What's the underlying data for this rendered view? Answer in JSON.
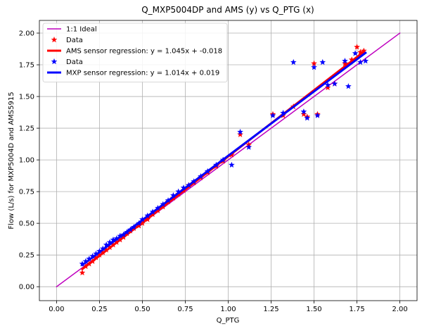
{
  "chart_data": {
    "type": "scatter",
    "title": "Q_MXP5004DP and AMS (y) vs Q_PTG (x)",
    "xlabel": "Q_PTG",
    "ylabel": "Flow (L/s) for MXP5004D and AMS5915",
    "xlim": [
      -0.1,
      2.1
    ],
    "ylim": [
      -0.11,
      2.1
    ],
    "xticks": [
      0.0,
      0.25,
      0.5,
      0.75,
      1.0,
      1.25,
      1.5,
      1.75,
      2.0
    ],
    "xtick_labels": [
      "0.00",
      "0.25",
      "0.50",
      "0.75",
      "1.00",
      "1.25",
      "1.50",
      "1.75",
      "2.00"
    ],
    "yticks": [
      0.0,
      0.25,
      0.5,
      0.75,
      1.0,
      1.25,
      1.5,
      1.75,
      2.0
    ],
    "ytick_labels": [
      "0.00",
      "0.25",
      "0.50",
      "0.75",
      "1.00",
      "1.25",
      "1.50",
      "1.75",
      "2.00"
    ],
    "grid": true,
    "legend_position": "top-left",
    "series": [
      {
        "name": "1:1 Ideal",
        "kind": "line",
        "color": "#bf00bf",
        "x": [
          0.0,
          2.0
        ],
        "y": [
          0.0,
          2.0
        ]
      },
      {
        "name": "Data",
        "kind": "points",
        "color": "#ff0000",
        "x": [
          0.15,
          0.17,
          0.19,
          0.21,
          0.23,
          0.25,
          0.27,
          0.29,
          0.31,
          0.33,
          0.35,
          0.37,
          0.39,
          0.41,
          0.43,
          0.45,
          0.48,
          0.5,
          0.53,
          0.56,
          0.59,
          0.62,
          0.65,
          0.68,
          0.71,
          0.74,
          0.77,
          0.8,
          0.84,
          0.88,
          0.93,
          0.97,
          1.02,
          1.07,
          1.12,
          1.26,
          1.32,
          1.38,
          1.44,
          1.46,
          1.5,
          1.52,
          1.58,
          1.62,
          1.68,
          1.72,
          1.75,
          1.77,
          1.79
        ],
        "y": [
          0.11,
          0.16,
          0.18,
          0.2,
          0.23,
          0.25,
          0.27,
          0.29,
          0.31,
          0.33,
          0.35,
          0.37,
          0.39,
          0.42,
          0.44,
          0.46,
          0.48,
          0.5,
          0.53,
          0.57,
          0.6,
          0.63,
          0.67,
          0.7,
          0.73,
          0.76,
          0.8,
          0.82,
          0.86,
          0.9,
          0.95,
          0.99,
          1.04,
          1.2,
          1.12,
          1.36,
          1.35,
          1.42,
          1.36,
          1.34,
          1.76,
          1.36,
          1.57,
          1.6,
          1.76,
          1.79,
          1.89,
          1.85,
          1.86
        ]
      },
      {
        "name": "AMS sensor regression: y = 1.045x + -0.018",
        "kind": "line",
        "color": "#ff0000",
        "x": [
          0.15,
          1.79
        ],
        "y": [
          0.139,
          1.853
        ]
      },
      {
        "name": "Data",
        "kind": "points",
        "color": "#0000ff",
        "x": [
          0.15,
          0.17,
          0.19,
          0.21,
          0.23,
          0.25,
          0.27,
          0.29,
          0.31,
          0.33,
          0.35,
          0.37,
          0.39,
          0.41,
          0.43,
          0.45,
          0.48,
          0.5,
          0.53,
          0.56,
          0.59,
          0.62,
          0.65,
          0.68,
          0.71,
          0.74,
          0.77,
          0.8,
          0.84,
          0.88,
          0.93,
          0.97,
          1.02,
          1.07,
          1.12,
          1.26,
          1.32,
          1.38,
          1.44,
          1.46,
          1.5,
          1.52,
          1.55,
          1.58,
          1.62,
          1.68,
          1.7,
          1.74,
          1.77,
          1.8
        ],
        "y": [
          0.18,
          0.2,
          0.22,
          0.24,
          0.26,
          0.28,
          0.3,
          0.33,
          0.35,
          0.37,
          0.38,
          0.4,
          0.41,
          0.43,
          0.45,
          0.47,
          0.5,
          0.53,
          0.56,
          0.59,
          0.62,
          0.65,
          0.68,
          0.72,
          0.75,
          0.78,
          0.8,
          0.83,
          0.87,
          0.91,
          0.96,
          1.0,
          0.96,
          1.22,
          1.1,
          1.35,
          1.37,
          1.77,
          1.38,
          1.33,
          1.73,
          1.35,
          1.77,
          1.59,
          1.6,
          1.78,
          1.58,
          1.84,
          1.77,
          1.78
        ]
      },
      {
        "name": "MXP sensor regression: y = 1.014x + 0.019",
        "kind": "line",
        "color": "#0000ff",
        "x": [
          0.15,
          1.8
        ],
        "y": [
          0.171,
          1.844
        ]
      }
    ]
  }
}
